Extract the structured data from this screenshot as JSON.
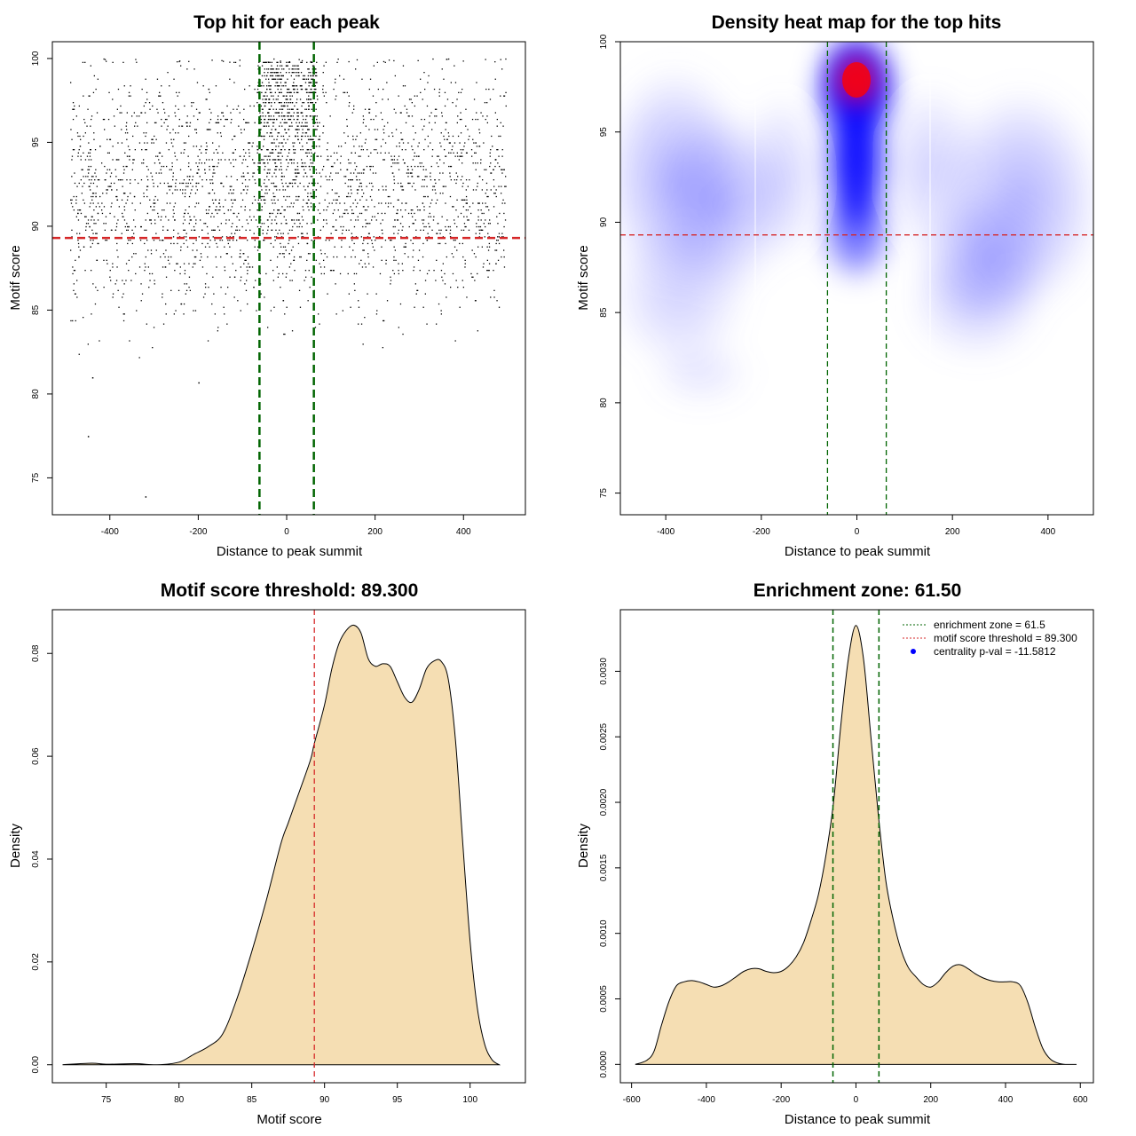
{
  "colors": {
    "threshold": "#d62728",
    "zone": "#006400",
    "density_fill": "#f5deb3",
    "heat_low": "#ffffff",
    "heat_mid": "#0000ff",
    "heat_high": "#ff0000"
  },
  "chart_data": [
    {
      "type": "scatter",
      "title": "Top hit for each peak",
      "xlabel": "Distance to peak summit",
      "ylabel": "Motif score",
      "xlim": [
        -530,
        540
      ],
      "ylim": [
        72.8,
        101
      ],
      "xticks": [
        -400,
        -200,
        0,
        200,
        400
      ],
      "yticks": [
        75,
        80,
        85,
        90,
        95,
        100
      ],
      "hline": 89.3,
      "vlines": [
        -61.5,
        61.5
      ],
      "point_count": 3300,
      "x_range": [
        -490,
        495
      ],
      "y_range": [
        73.9,
        100
      ],
      "outliers": [
        {
          "x": -450,
          "y": 77.5
        },
        {
          "x": -320,
          "y": 73.9
        },
        {
          "x": -440,
          "y": 81.0
        },
        {
          "x": -200,
          "y": 80.7
        }
      ]
    },
    {
      "type": "heatmap",
      "title": "Density heat map for the top hits",
      "xlabel": "Distance to peak summit",
      "ylabel": "Motif score",
      "xlim": [
        -495,
        495
      ],
      "ylim": [
        73.8,
        100
      ],
      "xticks": [
        -400,
        -200,
        0,
        200,
        400
      ],
      "yticks": [
        75,
        80,
        85,
        90,
        95,
        100
      ],
      "hline": 89.3,
      "vlines": [
        -61.5,
        61.5
      ],
      "peak": {
        "x": 0,
        "y": 98
      }
    },
    {
      "type": "area",
      "title": "Motif score threshold: 89.300",
      "xlabel": "Motif score",
      "ylabel": "Density",
      "xlim": [
        71.3,
        103.8
      ],
      "ylim": [
        -0.0035,
        0.0885
      ],
      "xticks": [
        75,
        80,
        85,
        90,
        95,
        100
      ],
      "yticks": [
        0.0,
        0.02,
        0.04,
        0.06,
        0.08
      ],
      "ytick_labels": [
        "0.00",
        "0.02",
        "0.04",
        "0.06",
        "0.08"
      ],
      "vline": 89.3,
      "x": [
        72,
        74,
        75,
        77,
        78.5,
        80,
        81,
        82,
        83,
        84,
        85,
        86,
        87,
        87.5,
        88,
        89,
        89.3,
        90,
        90.5,
        91,
        91.5,
        92,
        92.5,
        93,
        93.5,
        94,
        94.5,
        95,
        95.5,
        96,
        96.5,
        97,
        97.5,
        98,
        98.5,
        99,
        99.5,
        100,
        100.5,
        101,
        101.5,
        102
      ],
      "y": [
        0.0,
        0.0003,
        0.0001,
        0.0002,
        0.0,
        0.0005,
        0.002,
        0.0035,
        0.006,
        0.013,
        0.022,
        0.032,
        0.043,
        0.047,
        0.051,
        0.059,
        0.0625,
        0.07,
        0.077,
        0.082,
        0.0845,
        0.0855,
        0.084,
        0.079,
        0.0775,
        0.078,
        0.0775,
        0.0745,
        0.0715,
        0.0705,
        0.073,
        0.077,
        0.0785,
        0.0785,
        0.075,
        0.063,
        0.043,
        0.024,
        0.011,
        0.004,
        0.001,
        0.0
      ]
    },
    {
      "type": "area",
      "title": "Enrichment zone: 61.50",
      "xlabel": "Distance to peak summit",
      "ylabel": "Density",
      "xlim": [
        -630,
        635
      ],
      "ylim": [
        -0.00014,
        0.00347
      ],
      "xticks": [
        -600,
        -400,
        -200,
        0,
        200,
        400,
        600
      ],
      "yticks": [
        0.0,
        0.0005,
        0.001,
        0.0015,
        0.002,
        0.0025,
        0.003
      ],
      "ytick_labels": [
        "0.0000",
        "0.0005",
        "0.0010",
        "0.0015",
        "0.0020",
        "0.0025",
        "0.0030"
      ],
      "vlines": [
        -61.5,
        61.5
      ],
      "x": [
        -590,
        -560,
        -540,
        -520,
        -500,
        -480,
        -460,
        -440,
        -420,
        -400,
        -380,
        -360,
        -340,
        -320,
        -300,
        -280,
        -260,
        -240,
        -220,
        -200,
        -180,
        -160,
        -140,
        -120,
        -100,
        -80,
        -60,
        -40,
        -20,
        0,
        20,
        40,
        60,
        80,
        100,
        120,
        140,
        160,
        180,
        200,
        220,
        240,
        260,
        280,
        300,
        320,
        340,
        360,
        380,
        400,
        420,
        440,
        460,
        480,
        500,
        520,
        540,
        560,
        590
      ],
      "y": [
        0.0,
        3e-05,
        0.0001,
        0.0003,
        0.00048,
        0.0006,
        0.00063,
        0.00064,
        0.00063,
        0.00061,
        0.00059,
        0.0006,
        0.00063,
        0.00067,
        0.00071,
        0.00073,
        0.00073,
        0.00071,
        0.0007,
        0.00071,
        0.00075,
        0.00082,
        0.00093,
        0.0011,
        0.0013,
        0.0016,
        0.002,
        0.0026,
        0.0031,
        0.00335,
        0.0031,
        0.0025,
        0.0019,
        0.0014,
        0.0011,
        0.00088,
        0.00074,
        0.00067,
        0.00061,
        0.00059,
        0.00063,
        0.0007,
        0.00075,
        0.00076,
        0.00073,
        0.00069,
        0.00066,
        0.00064,
        0.00063,
        0.00063,
        0.00063,
        0.0006,
        0.00047,
        0.00028,
        0.00012,
        4e-05,
        1e-05,
        0.0,
        0.0
      ],
      "legend": [
        {
          "label": "enrichment zone = 61.5",
          "kind": "dotted-line",
          "color": "#006400"
        },
        {
          "label": "motif score threshold = 89.300",
          "kind": "dotted-line",
          "color": "#d62728"
        },
        {
          "label": "centrality p-val = -11.5812",
          "kind": "dot",
          "color": "#0000ff"
        }
      ],
      "legend_position": "top-right"
    }
  ]
}
